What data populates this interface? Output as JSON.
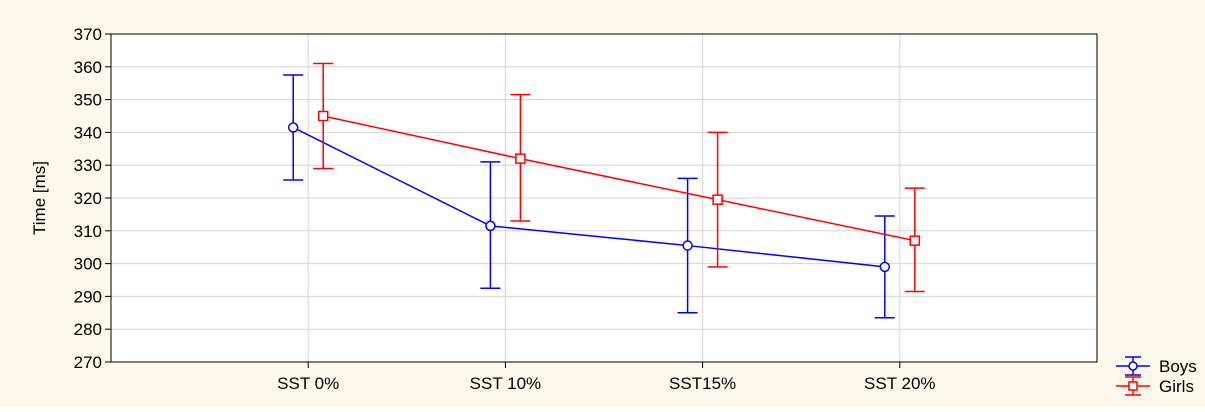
{
  "chart_data": {
    "type": "line",
    "title": "",
    "xlabel": "",
    "ylabel": "Time [ms]",
    "ylim": [
      270,
      370
    ],
    "yticks": [
      270,
      280,
      290,
      300,
      310,
      320,
      330,
      340,
      350,
      360,
      370
    ],
    "categories": [
      "SST 0%",
      "SST 10%",
      "SST15%",
      "SST 20%"
    ],
    "grid": true,
    "legend_position": "bottom-right outside",
    "background_color": "#fdf8ec",
    "plot_background_color": "#ffffff",
    "series": [
      {
        "name": "Boys",
        "color": "#0000ff",
        "marker": "circle",
        "values": [
          341.5,
          311.5,
          305.5,
          299
        ],
        "error_low": [
          325.5,
          292.5,
          285,
          283.5
        ],
        "error_high": [
          357.5,
          331,
          326,
          314.5
        ]
      },
      {
        "name": "Girls",
        "color": "#ff0000",
        "marker": "square",
        "values": [
          345,
          332,
          319.5,
          307
        ],
        "error_low": [
          329,
          313,
          299,
          291.5
        ],
        "error_high": [
          361,
          351.5,
          340,
          323
        ]
      }
    ]
  }
}
